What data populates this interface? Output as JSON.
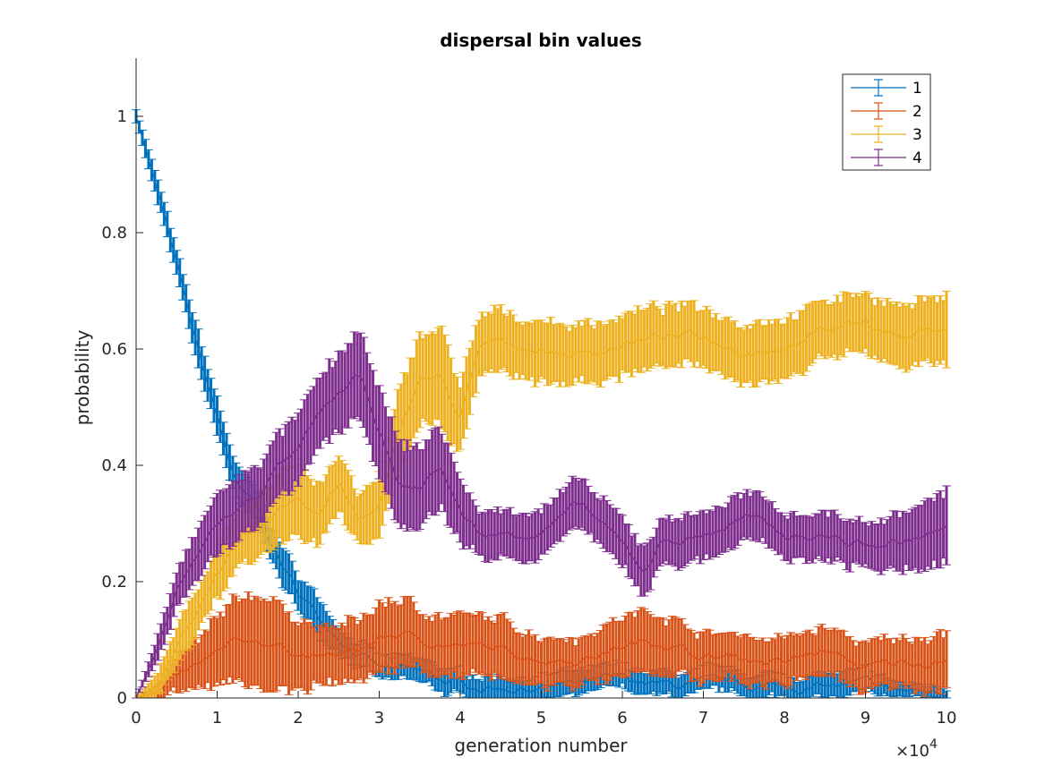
{
  "chart_data": {
    "type": "line",
    "title": "dispersal bin values",
    "xlabel": "generation number",
    "ylabel": "probability",
    "x_exponent_label": "×10",
    "x_exponent_power": "4",
    "xlim": [
      0,
      10
    ],
    "ylim": [
      0,
      1.1
    ],
    "xticks": [
      "0",
      "1",
      "2",
      "3",
      "4",
      "5",
      "6",
      "7",
      "8",
      "9",
      "10"
    ],
    "yticks": [
      "0",
      "0.2",
      "0.4",
      "0.6",
      "0.8",
      "1"
    ],
    "ytick_values": [
      0,
      0.2,
      0.4,
      0.6,
      0.8,
      1.0
    ],
    "grid": false,
    "legend_position": "top-right",
    "error_bars": true,
    "series": [
      {
        "name": "1",
        "color": "#0072BD",
        "x": [
          0,
          0.25,
          0.5,
          0.75,
          1.0,
          1.25,
          1.5,
          1.75,
          2.0,
          2.25,
          2.5,
          2.75,
          3.0,
          3.5,
          4.0,
          4.5,
          5.0,
          5.5,
          6.0,
          6.5,
          7.0,
          7.5,
          8.0,
          8.5,
          9.0,
          9.5,
          10.0
        ],
        "y": [
          1.0,
          0.88,
          0.74,
          0.6,
          0.48,
          0.36,
          0.32,
          0.24,
          0.18,
          0.14,
          0.11,
          0.08,
          0.05,
          0.04,
          0.02,
          0.02,
          0.02,
          0.02,
          0.03,
          0.02,
          0.02,
          0.02,
          0.02,
          0.02,
          0.02,
          0.01,
          0.01
        ],
        "err": [
          0.01,
          0.02,
          0.02,
          0.03,
          0.03,
          0.03,
          0.03,
          0.03,
          0.03,
          0.03,
          0.02,
          0.02,
          0.02,
          0.02,
          0.02,
          0.02,
          0.02,
          0.02,
          0.02,
          0.02,
          0.02,
          0.02,
          0.02,
          0.02,
          0.02,
          0.01,
          0.01
        ]
      },
      {
        "name": "2",
        "color": "#D95319",
        "x": [
          0,
          0.25,
          0.5,
          0.75,
          1.0,
          1.25,
          1.5,
          1.75,
          2.0,
          2.25,
          2.5,
          2.75,
          3.0,
          3.25,
          3.5,
          4.0,
          4.5,
          5.0,
          5.5,
          6.0,
          6.5,
          7.0,
          7.5,
          8.0,
          8.5,
          9.0,
          9.5,
          10.0
        ],
        "y": [
          0,
          0.01,
          0.03,
          0.05,
          0.07,
          0.09,
          0.1,
          0.09,
          0.08,
          0.07,
          0.07,
          0.08,
          0.1,
          0.11,
          0.1,
          0.09,
          0.08,
          0.07,
          0.07,
          0.09,
          0.1,
          0.07,
          0.07,
          0.06,
          0.08,
          0.05,
          0.06,
          0.07
        ],
        "err": [
          0.0,
          0.01,
          0.03,
          0.04,
          0.06,
          0.07,
          0.08,
          0.07,
          0.06,
          0.05,
          0.05,
          0.05,
          0.06,
          0.06,
          0.05,
          0.05,
          0.05,
          0.04,
          0.04,
          0.05,
          0.05,
          0.04,
          0.04,
          0.04,
          0.04,
          0.04,
          0.04,
          0.05
        ]
      },
      {
        "name": "3",
        "color": "#EDB120",
        "x": [
          0,
          0.25,
          0.5,
          0.75,
          1.0,
          1.25,
          1.5,
          1.75,
          2.0,
          2.25,
          2.5,
          2.75,
          3.0,
          3.25,
          3.5,
          3.75,
          4.0,
          4.25,
          4.5,
          5.0,
          5.5,
          6.0,
          6.5,
          7.0,
          7.5,
          8.0,
          8.5,
          9.0,
          9.5,
          10.0
        ],
        "y": [
          0,
          0.02,
          0.08,
          0.15,
          0.22,
          0.26,
          0.28,
          0.32,
          0.35,
          0.32,
          0.37,
          0.3,
          0.33,
          0.45,
          0.55,
          0.55,
          0.48,
          0.6,
          0.61,
          0.6,
          0.59,
          0.61,
          0.62,
          0.62,
          0.6,
          0.61,
          0.63,
          0.65,
          0.62,
          0.64
        ],
        "err": [
          0.0,
          0.02,
          0.03,
          0.04,
          0.04,
          0.05,
          0.05,
          0.06,
          0.06,
          0.05,
          0.05,
          0.04,
          0.05,
          0.07,
          0.08,
          0.08,
          0.06,
          0.05,
          0.05,
          0.05,
          0.05,
          0.05,
          0.05,
          0.05,
          0.05,
          0.05,
          0.05,
          0.05,
          0.05,
          0.06
        ]
      },
      {
        "name": "4",
        "color": "#7E2F8E",
        "x": [
          0,
          0.25,
          0.5,
          0.75,
          1.0,
          1.25,
          1.5,
          1.75,
          2.0,
          2.25,
          2.5,
          2.75,
          3.0,
          3.25,
          3.5,
          3.75,
          4.0,
          4.25,
          4.5,
          5.0,
          5.5,
          6.0,
          6.25,
          6.5,
          7.0,
          7.5,
          8.0,
          8.5,
          9.0,
          9.5,
          10.0
        ],
        "y": [
          0,
          0.08,
          0.18,
          0.24,
          0.3,
          0.32,
          0.35,
          0.4,
          0.42,
          0.48,
          0.52,
          0.55,
          0.46,
          0.36,
          0.36,
          0.4,
          0.32,
          0.28,
          0.28,
          0.29,
          0.33,
          0.26,
          0.22,
          0.27,
          0.28,
          0.31,
          0.28,
          0.28,
          0.26,
          0.27,
          0.29
        ],
        "err": [
          0.0,
          0.02,
          0.03,
          0.04,
          0.05,
          0.05,
          0.05,
          0.05,
          0.06,
          0.06,
          0.07,
          0.07,
          0.07,
          0.07,
          0.07,
          0.07,
          0.05,
          0.04,
          0.04,
          0.04,
          0.04,
          0.04,
          0.04,
          0.04,
          0.04,
          0.04,
          0.04,
          0.04,
          0.04,
          0.05,
          0.06
        ]
      }
    ]
  }
}
